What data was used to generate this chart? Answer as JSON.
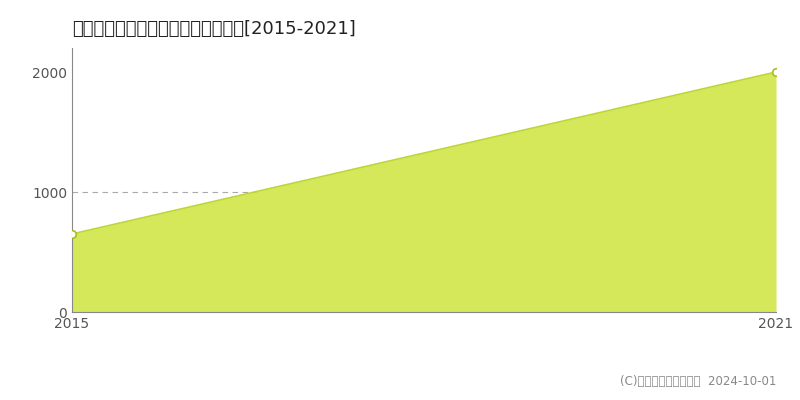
{
  "title": "北設楽郡東栄町御園　林地価格推移[2015-2021]",
  "x_values": [
    2015,
    2021
  ],
  "y_values": [
    650,
    2000
  ],
  "xlim": [
    2015,
    2021
  ],
  "ylim": [
    0,
    2200
  ],
  "yticks": [
    0,
    1000,
    2000
  ],
  "xticks": [
    2015,
    2021
  ],
  "line_color": "#bdd633",
  "fill_color": "#d4e85a",
  "fill_alpha": 1.0,
  "marker_color": "#ffffff",
  "marker_edge_color": "#aabb22",
  "grid_y": 1000,
  "copyright_text": "(C)土地価格ドットコム  2024-10-01",
  "background_color": "#ffffff",
  "title_fontsize": 13,
  "tick_fontsize": 10,
  "legend_fontsize": 9,
  "copyright_fontsize": 8.5
}
